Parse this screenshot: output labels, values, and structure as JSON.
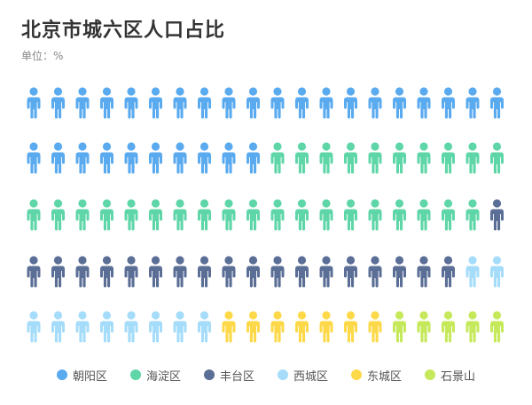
{
  "title": "北京市城六区人口占比",
  "unit_label": "单位：%",
  "chart_data": {
    "type": "pictogram",
    "title": "北京市城六区人口占比",
    "unit": "%",
    "columns": 20,
    "rows": 5,
    "total_icons": 100,
    "series": [
      {
        "name": "朝阳区",
        "value": 30,
        "color": "#5aaaef"
      },
      {
        "name": "海淀区",
        "value": 29,
        "color": "#5fd6a8"
      },
      {
        "name": "丰台区",
        "value": 19,
        "color": "#5b6e96"
      },
      {
        "name": "西城区",
        "value": 10,
        "color": "#a5dcfa"
      },
      {
        "name": "东城区",
        "value": 7,
        "color": "#fdd94a"
      },
      {
        "name": "石景山",
        "value": 5,
        "color": "#c5e95a"
      }
    ],
    "legend_position": "bottom-center"
  }
}
